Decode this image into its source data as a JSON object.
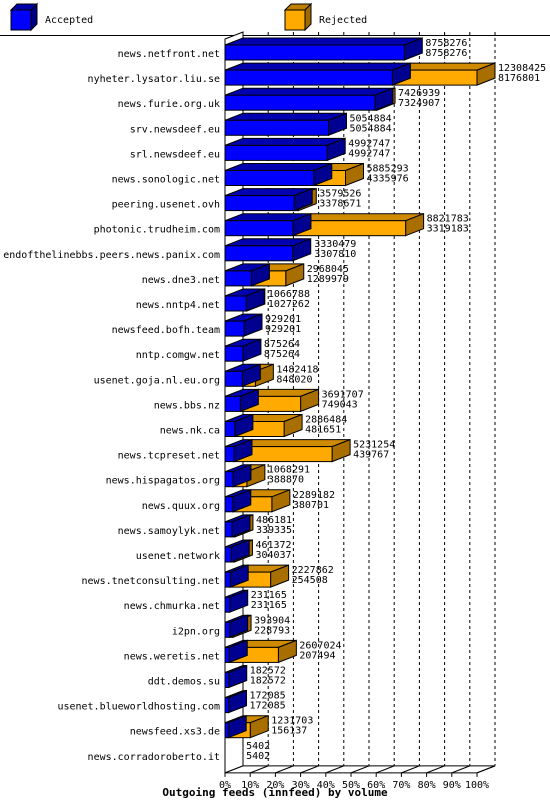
{
  "chart_data": {
    "type": "bar",
    "orientation": "horizontal",
    "stacked": true,
    "three_d": true,
    "title": "",
    "xlabel": "Outgoing feeds (innfeed) by volume",
    "ylabel": "",
    "xlim": [
      0,
      100
    ],
    "x_unit": "%",
    "x_ticks": [
      "0%",
      "10%",
      "20%",
      "30%",
      "40%",
      "50%",
      "60%",
      "70%",
      "80%",
      "90%",
      "100%"
    ],
    "grid": true,
    "legend_position": "top",
    "colors": {
      "accepted": "#0000ff",
      "rejected": "#ffaa00",
      "border": "#000000"
    },
    "legend": [
      {
        "key": "accepted",
        "name": "Accepted"
      },
      {
        "key": "rejected",
        "name": "Rejected"
      }
    ],
    "categories": [
      "news.netfront.net",
      "nyheter.lysator.liu.se",
      "news.furie.org.uk",
      "srv.newsdeef.eu",
      "srl.newsdeef.eu",
      "news.sonologic.net",
      "peering.usenet.ovh",
      "photonic.trudheim.com",
      "endofthelinebbs.peers.news.panix.com",
      "news.dne3.net",
      "news.nntp4.net",
      "newsfeed.bofh.team",
      "nntp.comgw.net",
      "usenet.goja.nl.eu.org",
      "news.bbs.nz",
      "news.nk.ca",
      "news.tcpreset.net",
      "news.hispagatos.org",
      "news.quux.org",
      "news.samoylyk.net",
      "usenet.network",
      "news.tnetconsulting.net",
      "news.chmurka.net",
      "i2pn.org",
      "news.weretis.net",
      "ddt.demos.su",
      "usenet.blueworldhosting.com",
      "newsfeed.xs3.de",
      "news.corradoroberto.it"
    ],
    "offered": [
      8758276,
      12308425,
      7426939,
      5054884,
      4992747,
      5885293,
      3579526,
      8821783,
      3330479,
      2968045,
      1066788,
      929201,
      875264,
      1482418,
      3691707,
      2886484,
      5231254,
      1068291,
      2289182,
      486181,
      461372,
      2227862,
      231165,
      393904,
      2607024,
      182572,
      172085,
      1231703,
      5402
    ],
    "accepted": [
      8758276,
      8176801,
      7324907,
      5054884,
      4992747,
      4335976,
      3378671,
      3319183,
      3307810,
      1289979,
      1027262,
      929201,
      875264,
      848020,
      749043,
      481651,
      439767,
      388870,
      380701,
      339335,
      304037,
      254508,
      231165,
      228793,
      207494,
      182572,
      172085,
      156137,
      5402
    ]
  }
}
